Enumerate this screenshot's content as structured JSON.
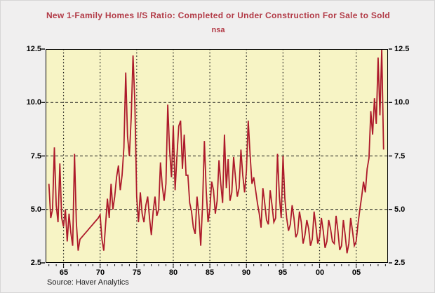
{
  "title": "New 1-Family Homes I/S Ratio: Completed or Under Construction For Sale to Sold",
  "subtitle": "nsa",
  "source": "Source: Haver Analytics",
  "colors": {
    "page_bg": "#f0efef",
    "plot_bg": "#f7f4c5",
    "line": "#ad1a2b",
    "title_text": "#b23a46",
    "grid": "#141414",
    "axis": "#000000",
    "tick_label": "#000000"
  },
  "chart_data": {
    "type": "line",
    "title": "New 1-Family Homes I/S Ratio: Completed or Under Construction For Sale to Sold",
    "subtitle": "nsa",
    "xlabel": "",
    "ylabel": "",
    "grid": true,
    "legend": "none",
    "x_domain": [
      1962.55,
      2009.35
    ],
    "y_domain": [
      2.5,
      12.5
    ],
    "y_ticks": [
      2.5,
      5.0,
      7.5,
      10.0,
      12.5
    ],
    "y_tick_labels": [
      "2.5",
      "5.0",
      "7.5",
      "10.0",
      "12.5"
    ],
    "x_ticks": [
      1965,
      1970,
      1975,
      1980,
      1985,
      1990,
      1995,
      2000,
      2005
    ],
    "x_tick_labels": [
      "65",
      "70",
      "75",
      "80",
      "85",
      "90",
      "95",
      "00",
      "05"
    ],
    "x_minor_tick_start": 1963,
    "x_minor_tick_end": 2009,
    "series": [
      {
        "name": "New 1-Family Homes I/S Ratio (nsa)",
        "start_year": 1963.0,
        "step_years": 0.25,
        "values": [
          6.2,
          4.6,
          5.0,
          7.9,
          5.2,
          4.4,
          7.15,
          4.6,
          4.2,
          5.0,
          3.5,
          4.8,
          3.9,
          3.3,
          7.6,
          4.4,
          3.07,
          3.6,
          3.7,
          3.8,
          3.9,
          4.0,
          4.1,
          4.2,
          4.3,
          4.4,
          4.5,
          4.6,
          4.75,
          3.6,
          3.07,
          4.3,
          5.5,
          4.6,
          6.2,
          5.0,
          5.6,
          6.5,
          7.05,
          5.9,
          6.6,
          7.9,
          11.4,
          8.4,
          7.5,
          9.3,
          12.2,
          10.0,
          5.6,
          4.4,
          5.8,
          4.8,
          4.4,
          5.2,
          5.6,
          4.6,
          3.8,
          4.9,
          5.6,
          4.7,
          5.0,
          7.2,
          6.1,
          5.4,
          6.2,
          9.9,
          7.8,
          6.5,
          8.9,
          5.9,
          7.5,
          8.9,
          9.15,
          6.9,
          8.5,
          6.6,
          6.6,
          5.3,
          4.9,
          4.15,
          3.85,
          5.6,
          4.7,
          3.3,
          5.2,
          8.2,
          5.9,
          4.4,
          5.0,
          6.3,
          5.9,
          4.8,
          5.4,
          7.3,
          6.2,
          5.3,
          8.5,
          6.0,
          7.35,
          5.4,
          5.8,
          7.45,
          6.5,
          5.6,
          6.0,
          7.8,
          6.6,
          5.8,
          6.8,
          9.15,
          7.6,
          6.2,
          6.5,
          5.9,
          5.3,
          4.8,
          4.15,
          6.0,
          5.3,
          4.5,
          4.3,
          5.9,
          5.2,
          4.4,
          4.6,
          7.6,
          5.6,
          4.6,
          7.5,
          5.5,
          4.6,
          4.0,
          4.3,
          5.2,
          4.6,
          3.7,
          3.9,
          4.9,
          4.4,
          3.4,
          3.8,
          4.5,
          4.1,
          3.3,
          3.6,
          4.9,
          4.2,
          3.4,
          3.7,
          4.6,
          4.0,
          3.2,
          3.5,
          4.5,
          4.1,
          3.5,
          3.4,
          4.7,
          4.0,
          3.1,
          3.3,
          4.5,
          3.8,
          2.95,
          3.4,
          4.6,
          4.0,
          3.3,
          3.5,
          4.3,
          5.0,
          5.6,
          6.3,
          5.8,
          6.9,
          7.4,
          9.6,
          8.5,
          10.2,
          9.0,
          12.1,
          9.4,
          12.5,
          7.8
        ]
      }
    ]
  }
}
